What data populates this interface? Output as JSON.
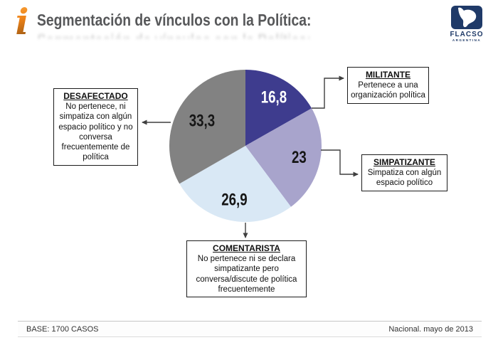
{
  "header": {
    "logo_glyph": "i",
    "title": "Segmentación de vínculos con la Política:"
  },
  "brand": {
    "name": "FLACSO",
    "subtitle": "ARGENTINA"
  },
  "chart_data": {
    "type": "pie",
    "title": "Segmentación de vínculos con la Política",
    "start_angle_deg": -90,
    "direction": "clockwise",
    "units": "percent",
    "segments": [
      {
        "label": "MILITANTE",
        "value": 16.8,
        "display": "16,8",
        "color": "#3e3c8e",
        "label_color": "#ffffff",
        "description": "Pertenece a una organización política"
      },
      {
        "label": "SIMPATIZANTE",
        "value": 23,
        "display": "23",
        "color": "#a8a4cc",
        "label_color": "#161616",
        "description": "Simpatiza con algún espacio político"
      },
      {
        "label": "COMENTARISTA",
        "value": 26.9,
        "display": "26,9",
        "color": "#d9e8f5",
        "label_color": "#161616",
        "description": "No pertenece ni se declara simpatizante pero conversa/discute de política frecuentemente"
      },
      {
        "label": "DESAFECTADO",
        "value": 33.3,
        "display": "33,3",
        "color": "#828282",
        "label_color": "#161616",
        "description": "No pertenece, ni simpatiza con algún espacio político y no conversa frecuentemente de política"
      }
    ]
  },
  "footer": {
    "left": "BASE: 1700 CASOS",
    "right": "Nacional. mayo de 2013"
  }
}
